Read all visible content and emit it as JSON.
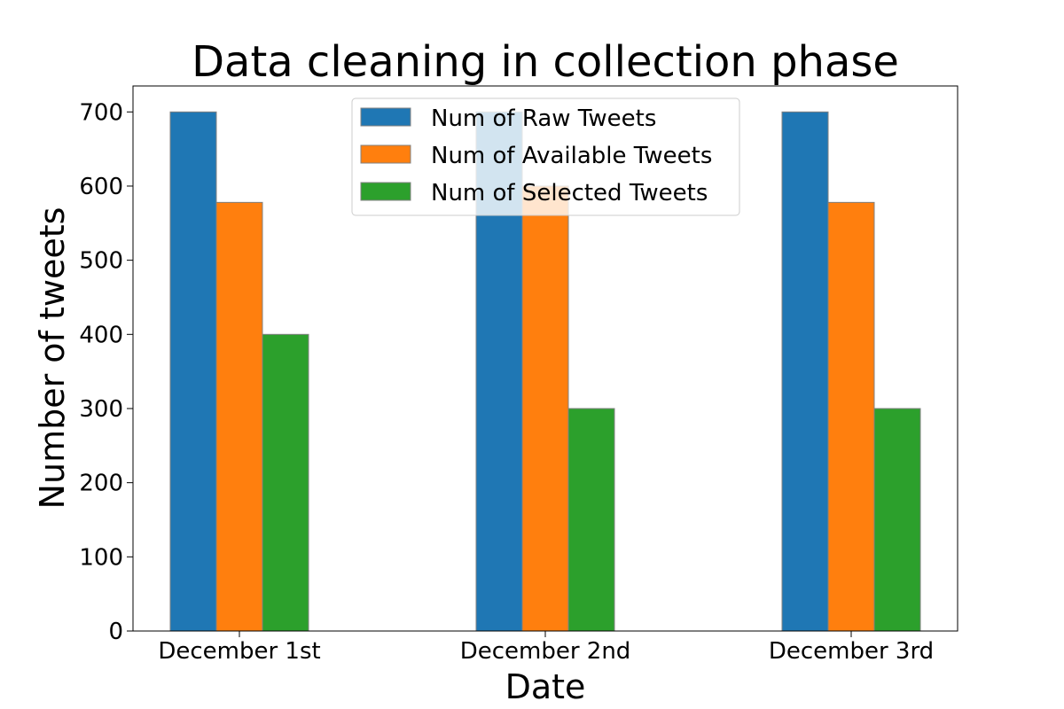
{
  "chart_data": {
    "type": "bar",
    "title": "Data cleaning in collection phase",
    "xlabel": "Date",
    "ylabel": "Number of tweets",
    "categories": [
      "December 1st",
      "December 2nd",
      "December 3rd"
    ],
    "series": [
      {
        "name": "Num of Raw Tweets",
        "color": "#1f77b4",
        "values": [
          700,
          700,
          700
        ]
      },
      {
        "name": "Num of Available Tweets",
        "color": "#ff7f0e",
        "values": [
          578,
          600,
          578
        ]
      },
      {
        "name": "Num of Selected Tweets",
        "color": "#2ca02c",
        "values": [
          400,
          300,
          300
        ]
      }
    ],
    "ylim": [
      0,
      735
    ],
    "yticks": [
      0,
      100,
      200,
      300,
      400,
      500,
      600,
      700
    ],
    "grid": false,
    "legend_position": "top-center"
  }
}
